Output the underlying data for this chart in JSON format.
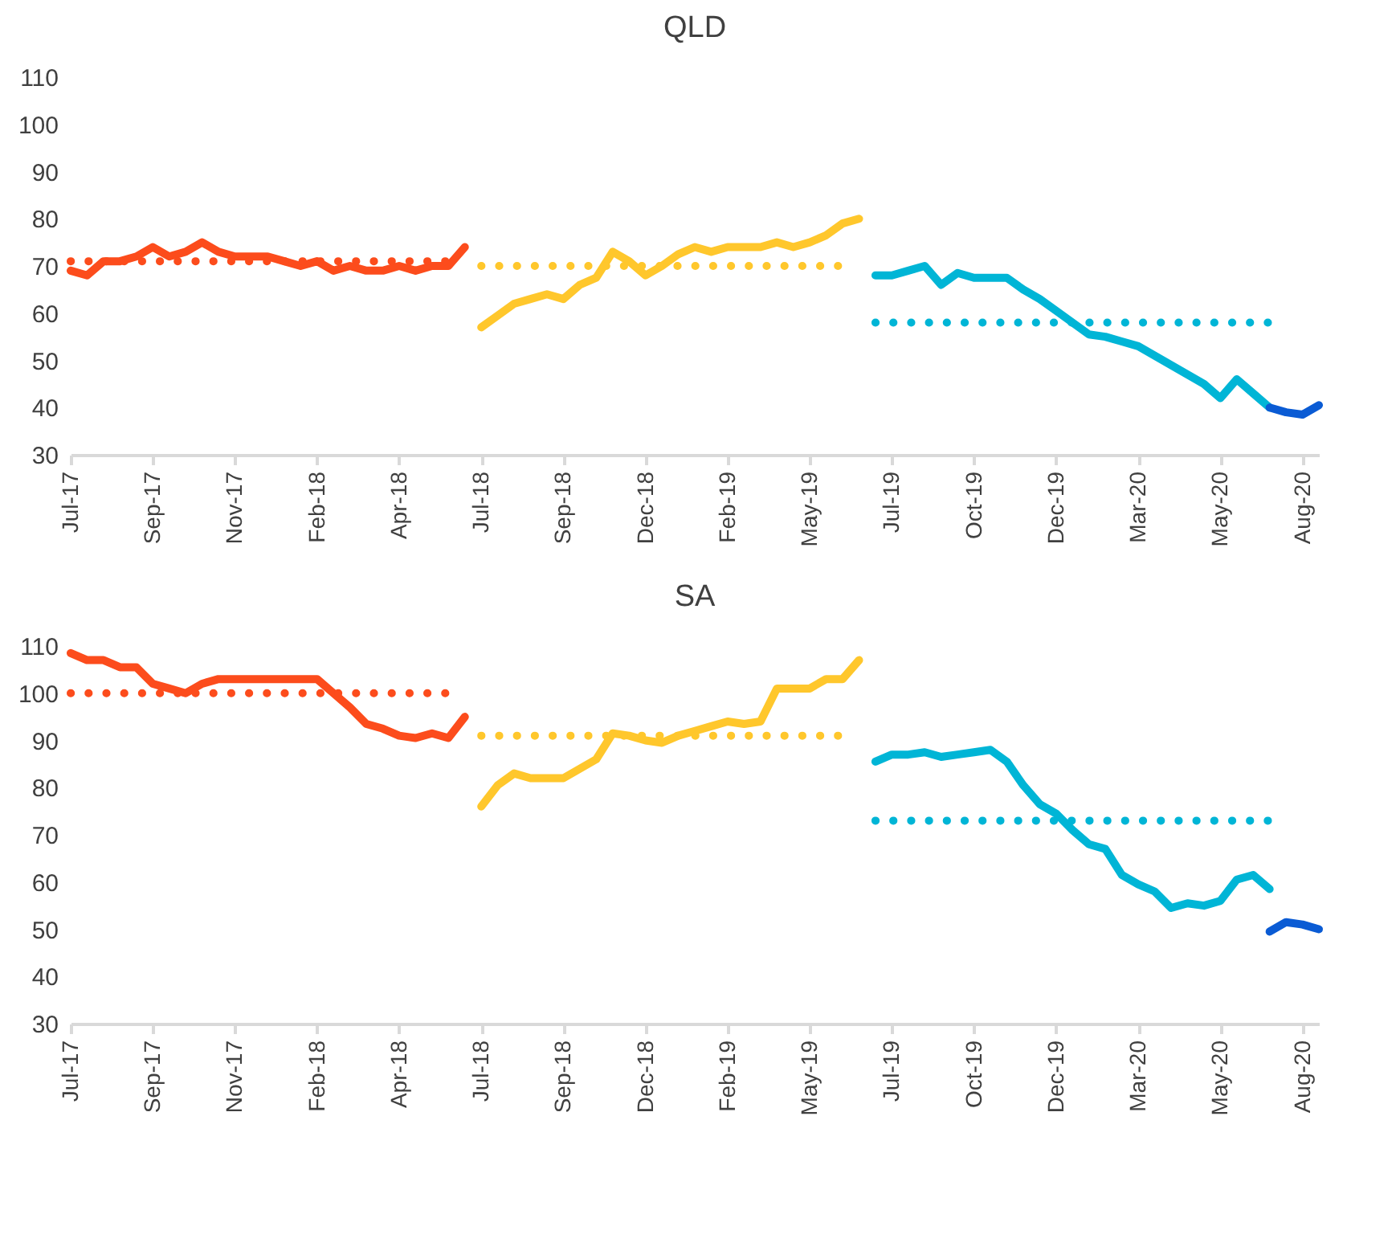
{
  "chart_data": [
    {
      "type": "line",
      "title": "QLD",
      "ylim": [
        30,
        110
      ],
      "yticks": [
        30,
        40,
        50,
        60,
        70,
        80,
        90,
        100,
        110
      ],
      "grid": false,
      "categories": [
        "Jul-17",
        null,
        null,
        null,
        null,
        "Sep-17",
        null,
        null,
        null,
        null,
        "Nov-17",
        null,
        null,
        null,
        null,
        "Feb-18",
        null,
        null,
        null,
        null,
        "Apr-18",
        null,
        null,
        null,
        null,
        "Jul-18",
        null,
        null,
        null,
        null,
        "Sep-18",
        null,
        null,
        null,
        null,
        "Dec-18",
        null,
        null,
        null,
        null,
        "Feb-19",
        null,
        null,
        null,
        null,
        "May-19",
        null,
        null,
        null,
        null,
        "Jul-19",
        null,
        null,
        null,
        null,
        "Oct-19",
        null,
        null,
        null,
        null,
        "Dec-19",
        null,
        null,
        null,
        null,
        "Mar-20",
        null,
        null,
        null,
        null,
        "May-20",
        null,
        null,
        null,
        null,
        "Aug-20",
        null
      ],
      "series": [
        {
          "line_style": "solid",
          "color": "#fc4c1c",
          "values": [
            69,
            68,
            71,
            71,
            72,
            74,
            72,
            73,
            75,
            73,
            72,
            72,
            72,
            71,
            70,
            71,
            69,
            70,
            69,
            69,
            70,
            69,
            70,
            70,
            74,
            null,
            null,
            null,
            null,
            null,
            null,
            null,
            null,
            null,
            null,
            null,
            null,
            null,
            null,
            null,
            null,
            null,
            null,
            null,
            null,
            null,
            null,
            null,
            null,
            null,
            null,
            null,
            null,
            null,
            null,
            null,
            null,
            null,
            null,
            null,
            null,
            null,
            null,
            null,
            null,
            null,
            null,
            null,
            null,
            null,
            null,
            null,
            null,
            null,
            null,
            null,
            null
          ]
        },
        {
          "line_style": "solid",
          "color": "#ffc72c",
          "values": [
            null,
            null,
            null,
            null,
            null,
            null,
            null,
            null,
            null,
            null,
            null,
            null,
            null,
            null,
            null,
            null,
            null,
            null,
            null,
            null,
            null,
            null,
            null,
            null,
            null,
            57,
            59.5,
            62,
            63,
            64,
            63,
            66,
            67.5,
            73,
            71,
            68,
            70,
            72.5,
            74,
            73,
            74,
            74,
            74,
            75,
            74,
            75,
            76.5,
            79,
            80,
            null,
            null,
            null,
            null,
            null,
            null,
            null,
            null,
            null,
            null,
            null,
            null,
            null,
            null,
            null,
            null,
            null,
            null,
            null,
            null,
            null,
            null,
            null,
            null,
            null,
            null,
            null,
            null
          ]
        },
        {
          "type": "line",
          "line_style": "solid",
          "color": "#00b5d6",
          "values": [
            null,
            null,
            null,
            null,
            null,
            null,
            null,
            null,
            null,
            null,
            null,
            null,
            null,
            null,
            null,
            null,
            null,
            null,
            null,
            null,
            null,
            null,
            null,
            null,
            null,
            null,
            null,
            null,
            null,
            null,
            null,
            null,
            null,
            null,
            null,
            null,
            null,
            null,
            null,
            null,
            null,
            null,
            null,
            null,
            null,
            null,
            null,
            null,
            null,
            68,
            68,
            69,
            70,
            66,
            68.5,
            67.5,
            67.5,
            67.5,
            65,
            63,
            60.5,
            58,
            55.5,
            55,
            54,
            53,
            51,
            49,
            47,
            45,
            42,
            46,
            43,
            40,
            null,
            null,
            null
          ]
        },
        {
          "type": "line",
          "line_style": "solid",
          "color": "#0a5bd4",
          "values": [
            null,
            null,
            null,
            null,
            null,
            null,
            null,
            null,
            null,
            null,
            null,
            null,
            null,
            null,
            null,
            null,
            null,
            null,
            null,
            null,
            null,
            null,
            null,
            null,
            null,
            null,
            null,
            null,
            null,
            null,
            null,
            null,
            null,
            null,
            null,
            null,
            null,
            null,
            null,
            null,
            null,
            null,
            null,
            null,
            null,
            null,
            null,
            null,
            null,
            null,
            null,
            null,
            null,
            null,
            null,
            null,
            null,
            null,
            null,
            null,
            null,
            null,
            null,
            null,
            null,
            null,
            null,
            null,
            null,
            null,
            null,
            null,
            null,
            40,
            39,
            38.5,
            40.5
          ]
        },
        {
          "type": "line",
          "line_style": "dotted",
          "color": "#fc4c1c",
          "values": [
            71,
            71,
            71,
            71,
            71,
            71,
            71,
            71,
            71,
            71,
            71,
            71,
            71,
            71,
            71,
            71,
            71,
            71,
            71,
            71,
            71,
            71,
            71,
            71,
            null,
            null,
            null,
            null,
            null,
            null,
            null,
            null,
            null,
            null,
            null,
            null,
            null,
            null,
            null,
            null,
            null,
            null,
            null,
            null,
            null,
            null,
            null,
            null,
            null,
            null,
            null,
            null,
            null,
            null,
            null,
            null,
            null,
            null,
            null,
            null,
            null,
            null,
            null,
            null,
            null,
            null,
            null,
            null,
            null,
            null,
            null,
            null,
            null,
            null,
            null,
            null,
            null
          ]
        },
        {
          "type": "line",
          "line_style": "dotted",
          "color": "#ffc72c",
          "values": [
            null,
            null,
            null,
            null,
            null,
            null,
            null,
            null,
            null,
            null,
            null,
            null,
            null,
            null,
            null,
            null,
            null,
            null,
            null,
            null,
            null,
            null,
            null,
            null,
            null,
            70,
            70,
            70,
            70,
            70,
            70,
            70,
            70,
            70,
            70,
            70,
            70,
            70,
            70,
            70,
            70,
            70,
            70,
            70,
            70,
            70,
            70,
            70,
            null,
            null,
            null,
            null,
            null,
            null,
            null,
            null,
            null,
            null,
            null,
            null,
            null,
            null,
            null,
            null,
            null,
            null,
            null,
            null,
            null,
            null,
            null,
            null,
            null,
            null,
            null,
            null,
            null
          ]
        },
        {
          "type": "line",
          "line_style": "dotted",
          "color": "#00b5d6",
          "values": [
            null,
            null,
            null,
            null,
            null,
            null,
            null,
            null,
            null,
            null,
            null,
            null,
            null,
            null,
            null,
            null,
            null,
            null,
            null,
            null,
            null,
            null,
            null,
            null,
            null,
            null,
            null,
            null,
            null,
            null,
            null,
            null,
            null,
            null,
            null,
            null,
            null,
            null,
            null,
            null,
            null,
            null,
            null,
            null,
            null,
            null,
            null,
            null,
            null,
            58,
            58,
            58,
            58,
            58,
            58,
            58,
            58,
            58,
            58,
            58,
            58,
            58,
            58,
            58,
            58,
            58,
            58,
            58,
            58,
            58,
            58,
            58,
            58,
            58,
            null,
            null,
            null
          ]
        }
      ]
    },
    {
      "type": "line",
      "title": "SA",
      "ylim": [
        30,
        110
      ],
      "yticks": [
        30,
        40,
        50,
        60,
        70,
        80,
        90,
        100,
        110
      ],
      "grid": false,
      "categories": [
        "Jul-17",
        null,
        null,
        null,
        null,
        "Sep-17",
        null,
        null,
        null,
        null,
        "Nov-17",
        null,
        null,
        null,
        null,
        "Feb-18",
        null,
        null,
        null,
        null,
        "Apr-18",
        null,
        null,
        null,
        null,
        "Jul-18",
        null,
        null,
        null,
        null,
        "Sep-18",
        null,
        null,
        null,
        null,
        "Dec-18",
        null,
        null,
        null,
        null,
        "Feb-19",
        null,
        null,
        null,
        null,
        "May-19",
        null,
        null,
        null,
        null,
        "Jul-19",
        null,
        null,
        null,
        null,
        "Oct-19",
        null,
        null,
        null,
        null,
        "Dec-19",
        null,
        null,
        null,
        null,
        "Mar-20",
        null,
        null,
        null,
        null,
        "May-20",
        null,
        null,
        null,
        null,
        "Aug-20",
        null
      ],
      "series": [
        {
          "type": "line",
          "line_style": "solid",
          "color": "#fc4c1c",
          "values": [
            108.5,
            107,
            107,
            105.5,
            105.5,
            102,
            101,
            100,
            102,
            103,
            103,
            103,
            103,
            103,
            103,
            103,
            100,
            97,
            93.5,
            92.5,
            91,
            90.5,
            91.5,
            90.5,
            95,
            null,
            null,
            null,
            null,
            null,
            null,
            null,
            null,
            null,
            null,
            null,
            null,
            null,
            null,
            null,
            null,
            null,
            null,
            null,
            null,
            null,
            null,
            null,
            null,
            null,
            null,
            null,
            null,
            null,
            null,
            null,
            null,
            null,
            null,
            null,
            null,
            null,
            null,
            null,
            null,
            null,
            null,
            null,
            null,
            null,
            null,
            null,
            null,
            null,
            null,
            null,
            null
          ]
        },
        {
          "type": "line",
          "line_style": "solid",
          "color": "#ffc72c",
          "values": [
            null,
            null,
            null,
            null,
            null,
            null,
            null,
            null,
            null,
            null,
            null,
            null,
            null,
            null,
            null,
            null,
            null,
            null,
            null,
            null,
            null,
            null,
            null,
            null,
            null,
            76,
            80.5,
            83,
            82,
            82,
            82,
            84,
            86,
            91.5,
            91,
            90,
            89.5,
            91,
            92,
            93,
            94,
            93.5,
            94,
            101,
            101,
            101,
            103,
            103,
            107,
            null,
            null,
            null,
            null,
            null,
            null,
            null,
            null,
            null,
            null,
            null,
            null,
            null,
            null,
            null,
            null,
            null,
            null,
            null,
            null,
            null,
            null,
            null,
            null,
            null,
            null,
            null,
            null
          ]
        },
        {
          "type": "line",
          "line_style": "solid",
          "color": "#00b5d6",
          "values": [
            null,
            null,
            null,
            null,
            null,
            null,
            null,
            null,
            null,
            null,
            null,
            null,
            null,
            null,
            null,
            null,
            null,
            null,
            null,
            null,
            null,
            null,
            null,
            null,
            null,
            null,
            null,
            null,
            null,
            null,
            null,
            null,
            null,
            null,
            null,
            null,
            null,
            null,
            null,
            null,
            null,
            null,
            null,
            null,
            null,
            null,
            null,
            null,
            null,
            85.5,
            87,
            87,
            87.5,
            86.5,
            87,
            87.5,
            88,
            85.5,
            80.5,
            76.5,
            74.5,
            71,
            68,
            67,
            61.5,
            59.5,
            58,
            54.5,
            55.5,
            55,
            56,
            60.5,
            61.5,
            58.5,
            null,
            null,
            null
          ]
        },
        {
          "type": "line",
          "line_style": "solid",
          "color": "#0a5bd4",
          "values": [
            null,
            null,
            null,
            null,
            null,
            null,
            null,
            null,
            null,
            null,
            null,
            null,
            null,
            null,
            null,
            null,
            null,
            null,
            null,
            null,
            null,
            null,
            null,
            null,
            null,
            null,
            null,
            null,
            null,
            null,
            null,
            null,
            null,
            null,
            null,
            null,
            null,
            null,
            null,
            null,
            null,
            null,
            null,
            null,
            null,
            null,
            null,
            null,
            null,
            null,
            null,
            null,
            null,
            null,
            null,
            null,
            null,
            null,
            null,
            null,
            null,
            null,
            null,
            null,
            null,
            null,
            null,
            null,
            null,
            null,
            null,
            null,
            null,
            49.5,
            51.5,
            51,
            50
          ]
        },
        {
          "type": "line",
          "line_style": "dotted",
          "color": "#fc4c1c",
          "values": [
            100,
            100,
            100,
            100,
            100,
            100,
            100,
            100,
            100,
            100,
            100,
            100,
            100,
            100,
            100,
            100,
            100,
            100,
            100,
            100,
            100,
            100,
            100,
            100,
            null,
            null,
            null,
            null,
            null,
            null,
            null,
            null,
            null,
            null,
            null,
            null,
            null,
            null,
            null,
            null,
            null,
            null,
            null,
            null,
            null,
            null,
            null,
            null,
            null,
            null,
            null,
            null,
            null,
            null,
            null,
            null,
            null,
            null,
            null,
            null,
            null,
            null,
            null,
            null,
            null,
            null,
            null,
            null,
            null,
            null,
            null,
            null,
            null,
            null,
            null,
            null,
            null
          ]
        },
        {
          "type": "line",
          "line_style": "dotted",
          "color": "#ffc72c",
          "values": [
            null,
            null,
            null,
            null,
            null,
            null,
            null,
            null,
            null,
            null,
            null,
            null,
            null,
            null,
            null,
            null,
            null,
            null,
            null,
            null,
            null,
            null,
            null,
            null,
            null,
            91,
            91,
            91,
            91,
            91,
            91,
            91,
            91,
            91,
            91,
            91,
            91,
            91,
            91,
            91,
            91,
            91,
            91,
            91,
            91,
            91,
            91,
            91,
            null,
            null,
            null,
            null,
            null,
            null,
            null,
            null,
            null,
            null,
            null,
            null,
            null,
            null,
            null,
            null,
            null,
            null,
            null,
            null,
            null,
            null,
            null,
            null,
            null,
            null,
            null,
            null,
            null
          ]
        },
        {
          "type": "line",
          "line_style": "dotted",
          "color": "#00b5d6",
          "values": [
            null,
            null,
            null,
            null,
            null,
            null,
            null,
            null,
            null,
            null,
            null,
            null,
            null,
            null,
            null,
            null,
            null,
            null,
            null,
            null,
            null,
            null,
            null,
            null,
            null,
            null,
            null,
            null,
            null,
            null,
            null,
            null,
            null,
            null,
            null,
            null,
            null,
            null,
            null,
            null,
            null,
            null,
            null,
            null,
            null,
            null,
            null,
            null,
            null,
            73,
            73,
            73,
            73,
            73,
            73,
            73,
            73,
            73,
            73,
            73,
            73,
            73,
            73,
            73,
            73,
            73,
            73,
            73,
            73,
            73,
            73,
            73,
            73,
            73,
            null,
            null,
            null
          ]
        }
      ]
    }
  ]
}
